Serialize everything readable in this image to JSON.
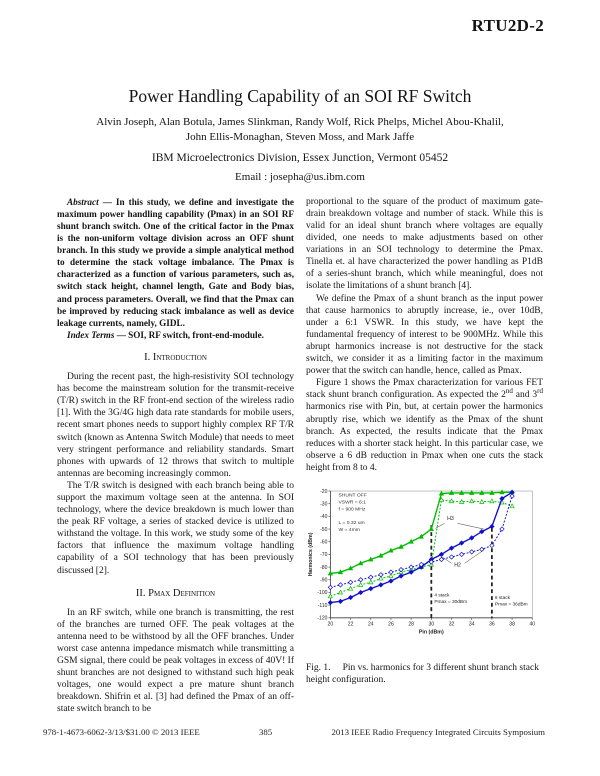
{
  "page": {
    "header_tag": "RTU2D-2",
    "title": "Power Handling Capability of an SOI RF Switch",
    "authors_line1": "Alvin Joseph, Alan Botula, James Slinkman, Randy Wolf, Rick Phelps, Michel Abou-Khalil,",
    "authors_line2": "John Ellis-Monaghan, Steven Moss, and Mark Jaffe",
    "affiliation": "IBM Microelectronics Division, Essex Junction, Vermont 05452",
    "email": "Email : josepha@us.ibm.com"
  },
  "abstract": {
    "label": "Abstract",
    "text": " — In this study, we define and investigate the maximum power handling capability (Pmax) in an SOI RF shunt branch switch. One of the critical factor in the Pmax is the non-uniform voltage division across an OFF shunt branch. In this study we provide a simple analytical method to determine the stack voltage imbalance. The Pmax is characterized as a function of various parameters, such as, switch stack height, channel length, Gate and Body bias, and process parameters. Overall, we find that the Pmax can be improved by reducing stack imbalance as well as device leakage currents, namely, GIDL.",
    "index_label": "Index Terms",
    "index_text": " — SOI, RF switch, front-end-module."
  },
  "sections": {
    "intro_heading": "I. Introduction",
    "pmax_heading": "II. Pmax Definition"
  },
  "left_col": {
    "intro_p1": "During the recent past, the high-resistivity SOI technology has become the mainstream solution for the transmit-receive (T/R) switch in the RF front-end section of the wireless radio [1]. With the 3G/4G high data rate standards for mobile users, recent smart phones needs to support highly complex RF T/R switch (known as Antenna Switch Module) that needs to meet very stringent performance and reliability standards. Smart phones with upwards of 12 throws that switch to multiple antennas are becoming increasingly common.",
    "intro_p2": "The T/R switch is designed with each branch being able to support the maximum voltage seen at the antenna. In SOI technology, where the device breakdown is much lower than the peak RF voltage, a series of stacked device is utilized to withstand the voltage. In this work, we study some of the key factors that influence the maximum voltage handling capability of a SOI technology that has been previously discussed [2].",
    "pmax_p1": "In an RF switch, while one branch is transmitting, the rest of the branches are turned OFF. The peak voltages at the antenna need to be withstood by all the OFF branches. Under worst case antenna impedance mismatch while transmitting a GSM signal, there could be peak voltages in excess of 40V! If shunt branches are not designed to withstand such high peak voltages, one would expect a pre mature shunt branch breakdown. Shifrin et al. [3] had defined the Pmax of an off-state switch branch to be"
  },
  "right_col": {
    "p1": "proportional to the square of the product of maximum gate-drain breakdown voltage and number of stack. While this is valid for an ideal shunt branch where voltages are equally divided, one needs to make adjustments based on other variations in an SOI technology to determine the Pmax. Tinella et. al have characterized the power handling as P1dB of a series-shunt branch, which while meaningful, does not isolate the limitations of a shunt branch [4].",
    "p2": "We define the Pmax of a shunt branch as the input power that cause harmonics to abruptly increase, ie., over 10dB, under a 6:1 VSWR. In this study, we have kept the fundamental frequency of interest to be 900MHz. While this abrupt harmonics increase is not destructive for the stack switch, we consider it as a limiting factor in the maximum power that the switch can handle, hence, called as Pmax.",
    "p3": {
      "a": "Figure 1 shows the Pmax characterization for various FET stack shunt branch configuration. As expected the 2",
      "sup1": "nd",
      "b": " and 3",
      "sup2": "rd",
      "c": " harmonics rise with Pin, but, at certain power the harmonics abruptly rise, which we identify as the Pmax of the shunt branch. As expected, the results indicate that the Pmax reduces with a shorter stack height. In this particular case, we observe a 6 dB reduction in Pmax when one cuts the stack height from 8 to 4."
    }
  },
  "figure": {
    "caption_label": "Fig. 1.",
    "caption_text": "Pin vs. harmonics for 3 different shunt branch stack height configuration."
  },
  "chart_data": {
    "type": "line",
    "xlabel": "Pin (dBm)",
    "ylabel": "Harmonics (dBm)",
    "xlim": [
      20,
      40
    ],
    "ylim": [
      -120,
      -20
    ],
    "xticks": [
      20,
      22,
      24,
      26,
      28,
      30,
      32,
      34,
      36,
      38,
      40
    ],
    "yticks": [
      -20,
      -30,
      -40,
      -50,
      -60,
      -70,
      -80,
      -90,
      -100,
      -110,
      -120
    ],
    "colors": {
      "green": "#00bb00",
      "blue": "#1111cc",
      "vline": "#222222",
      "leader": "#333333"
    },
    "x": [
      20,
      21,
      22,
      23,
      24,
      25,
      26,
      27,
      28,
      29,
      30,
      31,
      32,
      33,
      34,
      35,
      36,
      37,
      38
    ],
    "series": [
      {
        "name": "4-stack H3",
        "color": "#00bb00",
        "dash": "none",
        "marker": "triangle",
        "fill": "filled",
        "y": [
          -85,
          -84,
          -81,
          -77,
          -74,
          -71,
          -67,
          -64,
          -60,
          -56,
          -50,
          -22,
          -21.5,
          -21.5,
          -21.5,
          -21.5,
          -21.5,
          -21,
          -21
        ]
      },
      {
        "name": "4-stack H2",
        "color": "#00bb00",
        "dash": "2 1.6",
        "marker": "triangle",
        "fill": "open",
        "y": [
          -103,
          -100,
          -97,
          -94,
          -92,
          -89,
          -87,
          -84,
          -82,
          -80,
          -78,
          -27,
          -28,
          -28.5,
          -28,
          -28.5,
          -28,
          -29,
          -32
        ]
      },
      {
        "name": "8-stack H3",
        "color": "#1111cc",
        "dash": "none",
        "marker": "diamond",
        "fill": "filled",
        "y": [
          -108,
          -107,
          -104,
          -100,
          -97,
          -94,
          -91,
          -87,
          -84,
          -80,
          -74,
          -70,
          -65,
          -61,
          -57,
          -52,
          -48,
          -26,
          -21
        ]
      },
      {
        "name": "8-stack H2",
        "color": "#1111cc",
        "dash": "2 1.6",
        "marker": "diamond",
        "fill": "open",
        "y": [
          -96,
          -94,
          -92,
          -90,
          -88,
          -86,
          -84,
          -82,
          -80,
          -78,
          -76,
          -74,
          -72,
          -70,
          -68,
          -66,
          -63,
          -50,
          -24
        ]
      }
    ],
    "annotations": {
      "info_block": {
        "x": 20.8,
        "lines": [
          {
            "y": -24.5,
            "text": "SHUNT OFF"
          },
          {
            "y": -30,
            "text": "VSWR = 6:1"
          },
          {
            "y": -35.5,
            "text": "f = 900 MHz"
          },
          {
            "y": -46,
            "text": "L = 0.32 um"
          },
          {
            "y": -51.5,
            "text": "W = 4mm"
          }
        ]
      },
      "h3": {
        "label": "H3",
        "x": 31.9,
        "y": -43,
        "leaders": [
          [
            31.3,
            -45.5,
            30.4,
            -49.5
          ],
          [
            32.6,
            -45.5,
            35.2,
            -50
          ]
        ]
      },
      "h2": {
        "label": "H2",
        "x": 32.6,
        "y": -79.5,
        "leaders": [
          [
            32.0,
            -77,
            30.9,
            -71
          ],
          [
            33.3,
            -77,
            35.2,
            -66.5
          ]
        ]
      },
      "vlines": [
        {
          "x": 30,
          "y_top": -47,
          "y_bottom": -120,
          "label_lines": [
            "4 stack",
            "Pmax = 30dBm"
          ],
          "label_x": 30.3,
          "label_y": -103
        },
        {
          "x": 36,
          "y_top": -49,
          "y_bottom": -120,
          "label_lines": [
            "8 stack",
            "Pmax = 36dBm"
          ],
          "label_x": 36.3,
          "label_y": -105
        }
      ]
    }
  },
  "footer": {
    "left": "978-1-4673-6062-3/13/$31.00 © 2013 IEEE",
    "page_number": "385",
    "right": "2013 IEEE Radio Frequency Integrated Circuits Symposium"
  }
}
